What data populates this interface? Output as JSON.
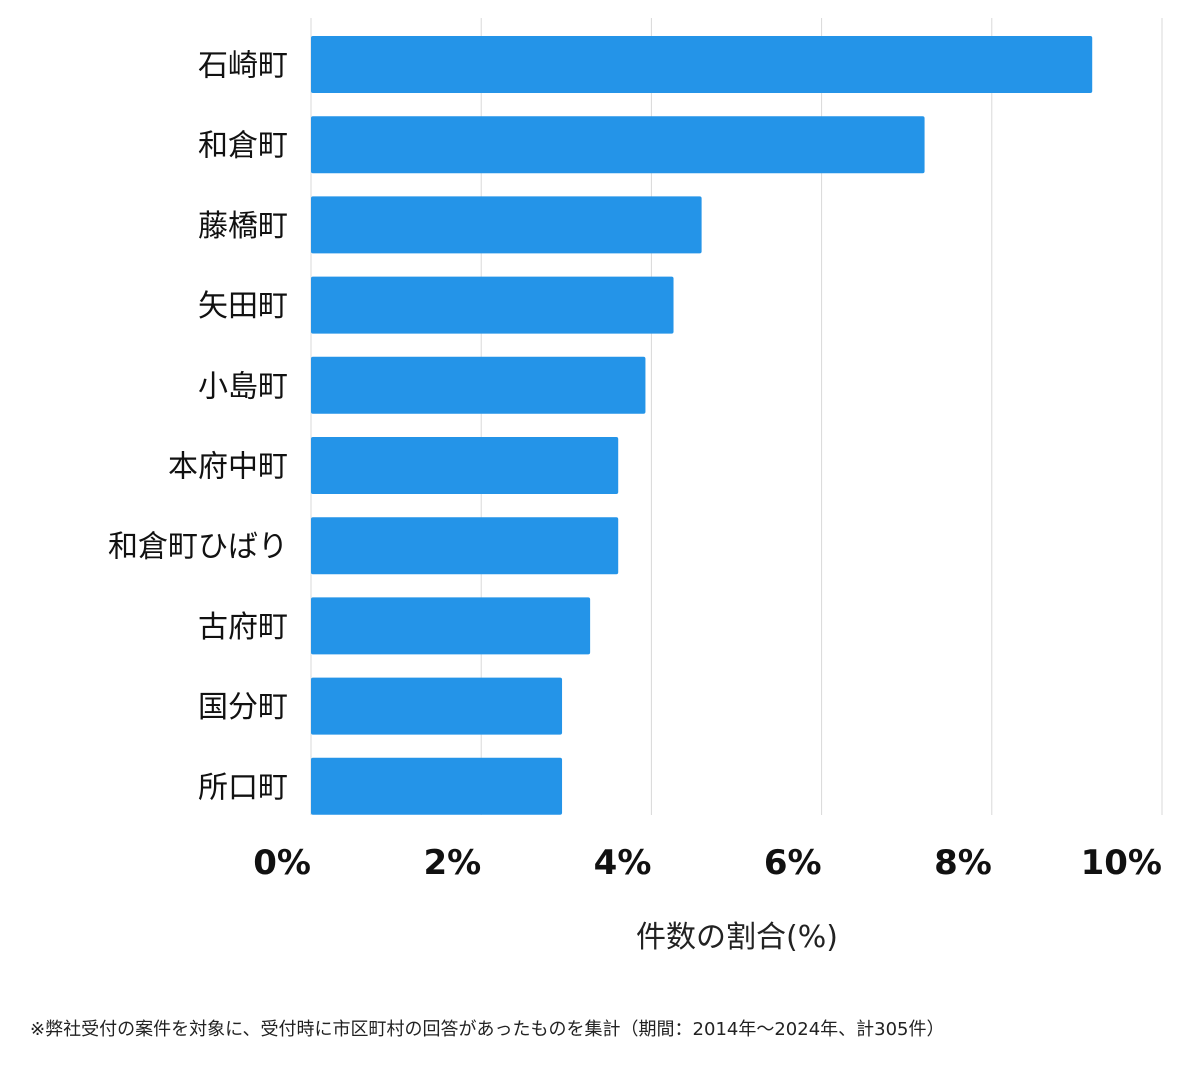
{
  "chart_data": {
    "type": "bar",
    "orientation": "horizontal",
    "categories": [
      "石崎町",
      "和倉町",
      "藤橋町",
      "矢田町",
      "小島町",
      "本府中町",
      "和倉町ひばり",
      "古府町",
      "国分町",
      "所口町"
    ],
    "values": [
      9.18,
      7.21,
      4.59,
      4.26,
      3.93,
      3.61,
      3.61,
      3.28,
      2.95,
      2.95
    ],
    "xlabel": "件数の割合(%)",
    "ylabel": "",
    "xlim": [
      0,
      10
    ],
    "xticks": [
      0,
      2,
      4,
      6,
      8,
      10
    ],
    "xtick_labels": [
      "0%",
      "2%",
      "4%",
      "6%",
      "8%",
      "10%"
    ],
    "grid": "vertical",
    "bar_color": "#2494E8"
  },
  "footnote": "※弊社受付の案件を対象に、受付時に市区町村の回答があったものを集計（期間：2014年～2024年、計305件）"
}
